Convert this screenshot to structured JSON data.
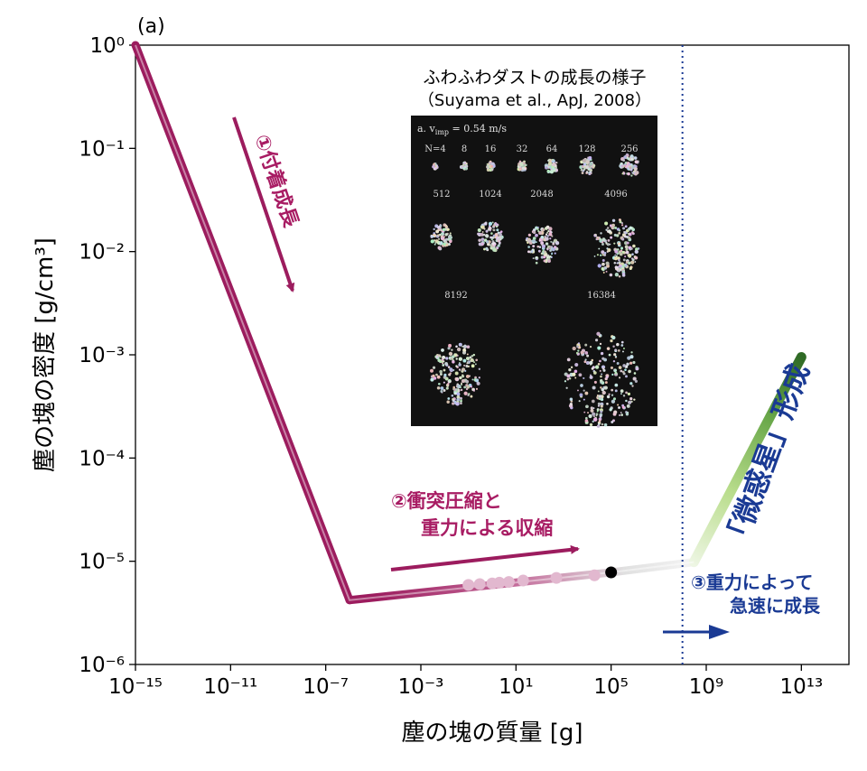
{
  "figure": {
    "panel_label": "(a)",
    "xlabel": "塵の塊の質量 [g]",
    "ylabel": "塵の塊の密度 [g/cm³]"
  },
  "chart_data": {
    "type": "line",
    "x_scale": "log",
    "y_scale": "log",
    "xlim": [
      1e-15,
      1000000000000000.0
    ],
    "ylim": [
      1e-06,
      1
    ],
    "x_ticks": [
      "10⁻¹⁵",
      "10⁻¹¹",
      "10⁻⁷",
      "10⁻³",
      "10¹",
      "10⁵",
      "10⁹",
      "10¹³"
    ],
    "y_ticks": [
      "10⁻⁶",
      "10⁻⁵",
      "10⁻⁴",
      "10⁻³",
      "10⁻²",
      "10⁻¹",
      "10⁰"
    ],
    "grid": false,
    "series": [
      {
        "points": [
          [
            1e-15,
            1.0
          ],
          [
            1e-06,
            4.2e-06
          ]
        ],
        "color": "#9c1c5e"
      },
      {
        "points": [
          [
            1e-06,
            4.2e-06
          ],
          [
            100000.0,
            7.8e-06
          ],
          [
            300000000.0,
            9.8e-06
          ]
        ],
        "color_from": "#9c1c5e",
        "color_to": "#f4f4f4"
      },
      {
        "points": [
          [
            300000000.0,
            9.8e-06
          ],
          [
            10000000000000.0,
            0.00095
          ]
        ],
        "color_from": "#e4f2d6",
        "color_to": "#2f6a25"
      }
    ],
    "scatter": {
      "points": [
        [
          0.1,
          5.9e-06
        ],
        [
          0.3,
          6e-06
        ],
        [
          1.0,
          6.1e-06
        ],
        [
          2.0,
          6.2e-06
        ],
        [
          5.0,
          6.3e-06
        ],
        [
          20.0,
          6.5e-06
        ],
        [
          500.0,
          6.9e-06
        ],
        [
          20000.0,
          7.3e-06
        ]
      ],
      "color": "#e2b8cf"
    },
    "marker": {
      "x": 100000.0,
      "y": 7.8e-06,
      "color": "#000000"
    },
    "vline": {
      "x": 100000000.0,
      "color": "#1a3a94",
      "style": "dotted"
    }
  },
  "annotations": {
    "step1": "①付着成長",
    "step2_line1": "②衝突圧縮と",
    "step2_line2": "重力による収縮",
    "step3_line1": "③重力によって",
    "step3_line2": "急速に成長",
    "planetesimal": "「微惑星」形成"
  },
  "inset": {
    "title": "ふわふわダストの成長の様子",
    "citation": "（Suyama et al., ApJ, 2008）",
    "caption": "a. v",
    "caption_sub": "imp",
    "caption_rest": " = 0.54 m/s",
    "row1": [
      "N=4",
      "8",
      "16",
      "32",
      "64",
      "128",
      "256"
    ],
    "row2": [
      "512",
      "1024",
      "2048",
      "4096"
    ],
    "row3": [
      "8192",
      "16384"
    ]
  },
  "colors": {
    "magenta": "#9c1c5e",
    "pink_text": "#a81c63",
    "blue": "#1a3a94",
    "green_dark": "#2f6a25"
  }
}
